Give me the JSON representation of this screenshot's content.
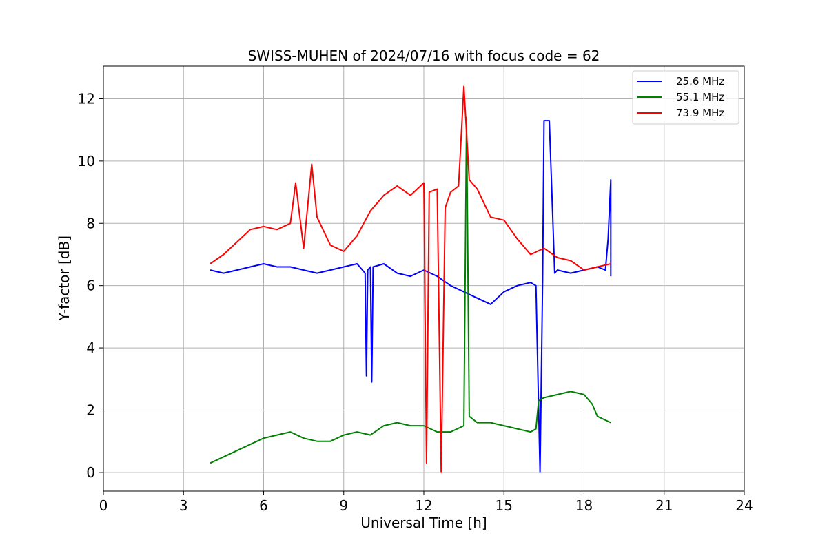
{
  "chart_data": {
    "type": "line",
    "title": "SWISS-MUHEN of 2024/07/16 with focus code = 62",
    "xlabel": "Universal Time [h]",
    "ylabel": "Y-factor [dB]",
    "xlim": [
      0,
      24
    ],
    "ylim": [
      -0.6,
      13.05
    ],
    "xticks": [
      0,
      3,
      6,
      9,
      12,
      15,
      18,
      21,
      24
    ],
    "yticks": [
      0,
      2,
      4,
      6,
      8,
      10,
      12
    ],
    "grid": true,
    "legend_position": "top-right",
    "series": [
      {
        "name": "25.6 MHz",
        "color": "#0000ff",
        "points": [
          [
            4.0,
            6.5
          ],
          [
            4.5,
            6.4
          ],
          [
            5.0,
            6.5
          ],
          [
            5.5,
            6.6
          ],
          [
            6.0,
            6.7
          ],
          [
            6.5,
            6.6
          ],
          [
            7.0,
            6.6
          ],
          [
            7.5,
            6.5
          ],
          [
            8.0,
            6.4
          ],
          [
            8.5,
            6.5
          ],
          [
            9.0,
            6.6
          ],
          [
            9.5,
            6.7
          ],
          [
            9.8,
            6.4
          ],
          [
            9.85,
            3.1
          ],
          [
            9.9,
            6.5
          ],
          [
            10.0,
            6.6
          ],
          [
            10.05,
            2.9
          ],
          [
            10.1,
            6.6
          ],
          [
            10.5,
            6.7
          ],
          [
            11.0,
            6.4
          ],
          [
            11.5,
            6.3
          ],
          [
            12.0,
            6.5
          ],
          [
            12.5,
            6.3
          ],
          [
            13.0,
            6.0
          ],
          [
            13.5,
            5.8
          ],
          [
            14.0,
            5.6
          ],
          [
            14.5,
            5.4
          ],
          [
            15.0,
            5.8
          ],
          [
            15.5,
            6.0
          ],
          [
            16.0,
            6.1
          ],
          [
            16.2,
            6.0
          ],
          [
            16.35,
            0.0
          ],
          [
            16.45,
            6.2
          ],
          [
            16.5,
            11.3
          ],
          [
            16.7,
            11.3
          ],
          [
            16.9,
            6.4
          ],
          [
            17.0,
            6.5
          ],
          [
            17.5,
            6.4
          ],
          [
            18.0,
            6.5
          ],
          [
            18.5,
            6.6
          ],
          [
            18.8,
            6.5
          ],
          [
            18.9,
            7.5
          ],
          [
            19.0,
            9.4
          ],
          [
            19.0,
            6.3
          ]
        ]
      },
      {
        "name": "55.1 MHz",
        "color": "#008000",
        "points": [
          [
            4.0,
            0.3
          ],
          [
            4.5,
            0.5
          ],
          [
            5.0,
            0.7
          ],
          [
            5.5,
            0.9
          ],
          [
            6.0,
            1.1
          ],
          [
            6.5,
            1.2
          ],
          [
            7.0,
            1.3
          ],
          [
            7.5,
            1.1
          ],
          [
            8.0,
            1.0
          ],
          [
            8.5,
            1.0
          ],
          [
            9.0,
            1.2
          ],
          [
            9.5,
            1.3
          ],
          [
            10.0,
            1.2
          ],
          [
            10.5,
            1.5
          ],
          [
            11.0,
            1.6
          ],
          [
            11.5,
            1.5
          ],
          [
            12.0,
            1.5
          ],
          [
            12.5,
            1.3
          ],
          [
            13.0,
            1.3
          ],
          [
            13.5,
            1.5
          ],
          [
            13.6,
            11.4
          ],
          [
            13.7,
            1.8
          ],
          [
            14.0,
            1.6
          ],
          [
            14.5,
            1.6
          ],
          [
            15.0,
            1.5
          ],
          [
            15.5,
            1.4
          ],
          [
            16.0,
            1.3
          ],
          [
            16.2,
            1.4
          ],
          [
            16.3,
            2.3
          ],
          [
            16.5,
            2.4
          ],
          [
            17.0,
            2.5
          ],
          [
            17.5,
            2.6
          ],
          [
            18.0,
            2.5
          ],
          [
            18.3,
            2.2
          ],
          [
            18.5,
            1.8
          ],
          [
            19.0,
            1.6
          ]
        ]
      },
      {
        "name": "73.9 MHz",
        "color": "#ff0000",
        "points": [
          [
            4.0,
            6.7
          ],
          [
            4.5,
            7.0
          ],
          [
            5.0,
            7.4
          ],
          [
            5.5,
            7.8
          ],
          [
            6.0,
            7.9
          ],
          [
            6.5,
            7.8
          ],
          [
            7.0,
            8.0
          ],
          [
            7.2,
            9.3
          ],
          [
            7.5,
            7.2
          ],
          [
            7.8,
            9.9
          ],
          [
            8.0,
            8.2
          ],
          [
            8.5,
            7.3
          ],
          [
            9.0,
            7.1
          ],
          [
            9.5,
            7.6
          ],
          [
            10.0,
            8.4
          ],
          [
            10.5,
            8.9
          ],
          [
            11.0,
            9.2
          ],
          [
            11.5,
            8.9
          ],
          [
            12.0,
            9.3
          ],
          [
            12.1,
            0.3
          ],
          [
            12.2,
            9.0
          ],
          [
            12.5,
            9.1
          ],
          [
            12.65,
            0.0
          ],
          [
            12.8,
            8.5
          ],
          [
            13.0,
            9.0
          ],
          [
            13.3,
            9.2
          ],
          [
            13.5,
            12.4
          ],
          [
            13.7,
            9.4
          ],
          [
            14.0,
            9.1
          ],
          [
            14.5,
            8.2
          ],
          [
            15.0,
            8.1
          ],
          [
            15.5,
            7.5
          ],
          [
            16.0,
            7.0
          ],
          [
            16.5,
            7.2
          ],
          [
            17.0,
            6.9
          ],
          [
            17.5,
            6.8
          ],
          [
            18.0,
            6.5
          ],
          [
            18.5,
            6.6
          ],
          [
            19.0,
            6.7
          ]
        ]
      }
    ]
  }
}
